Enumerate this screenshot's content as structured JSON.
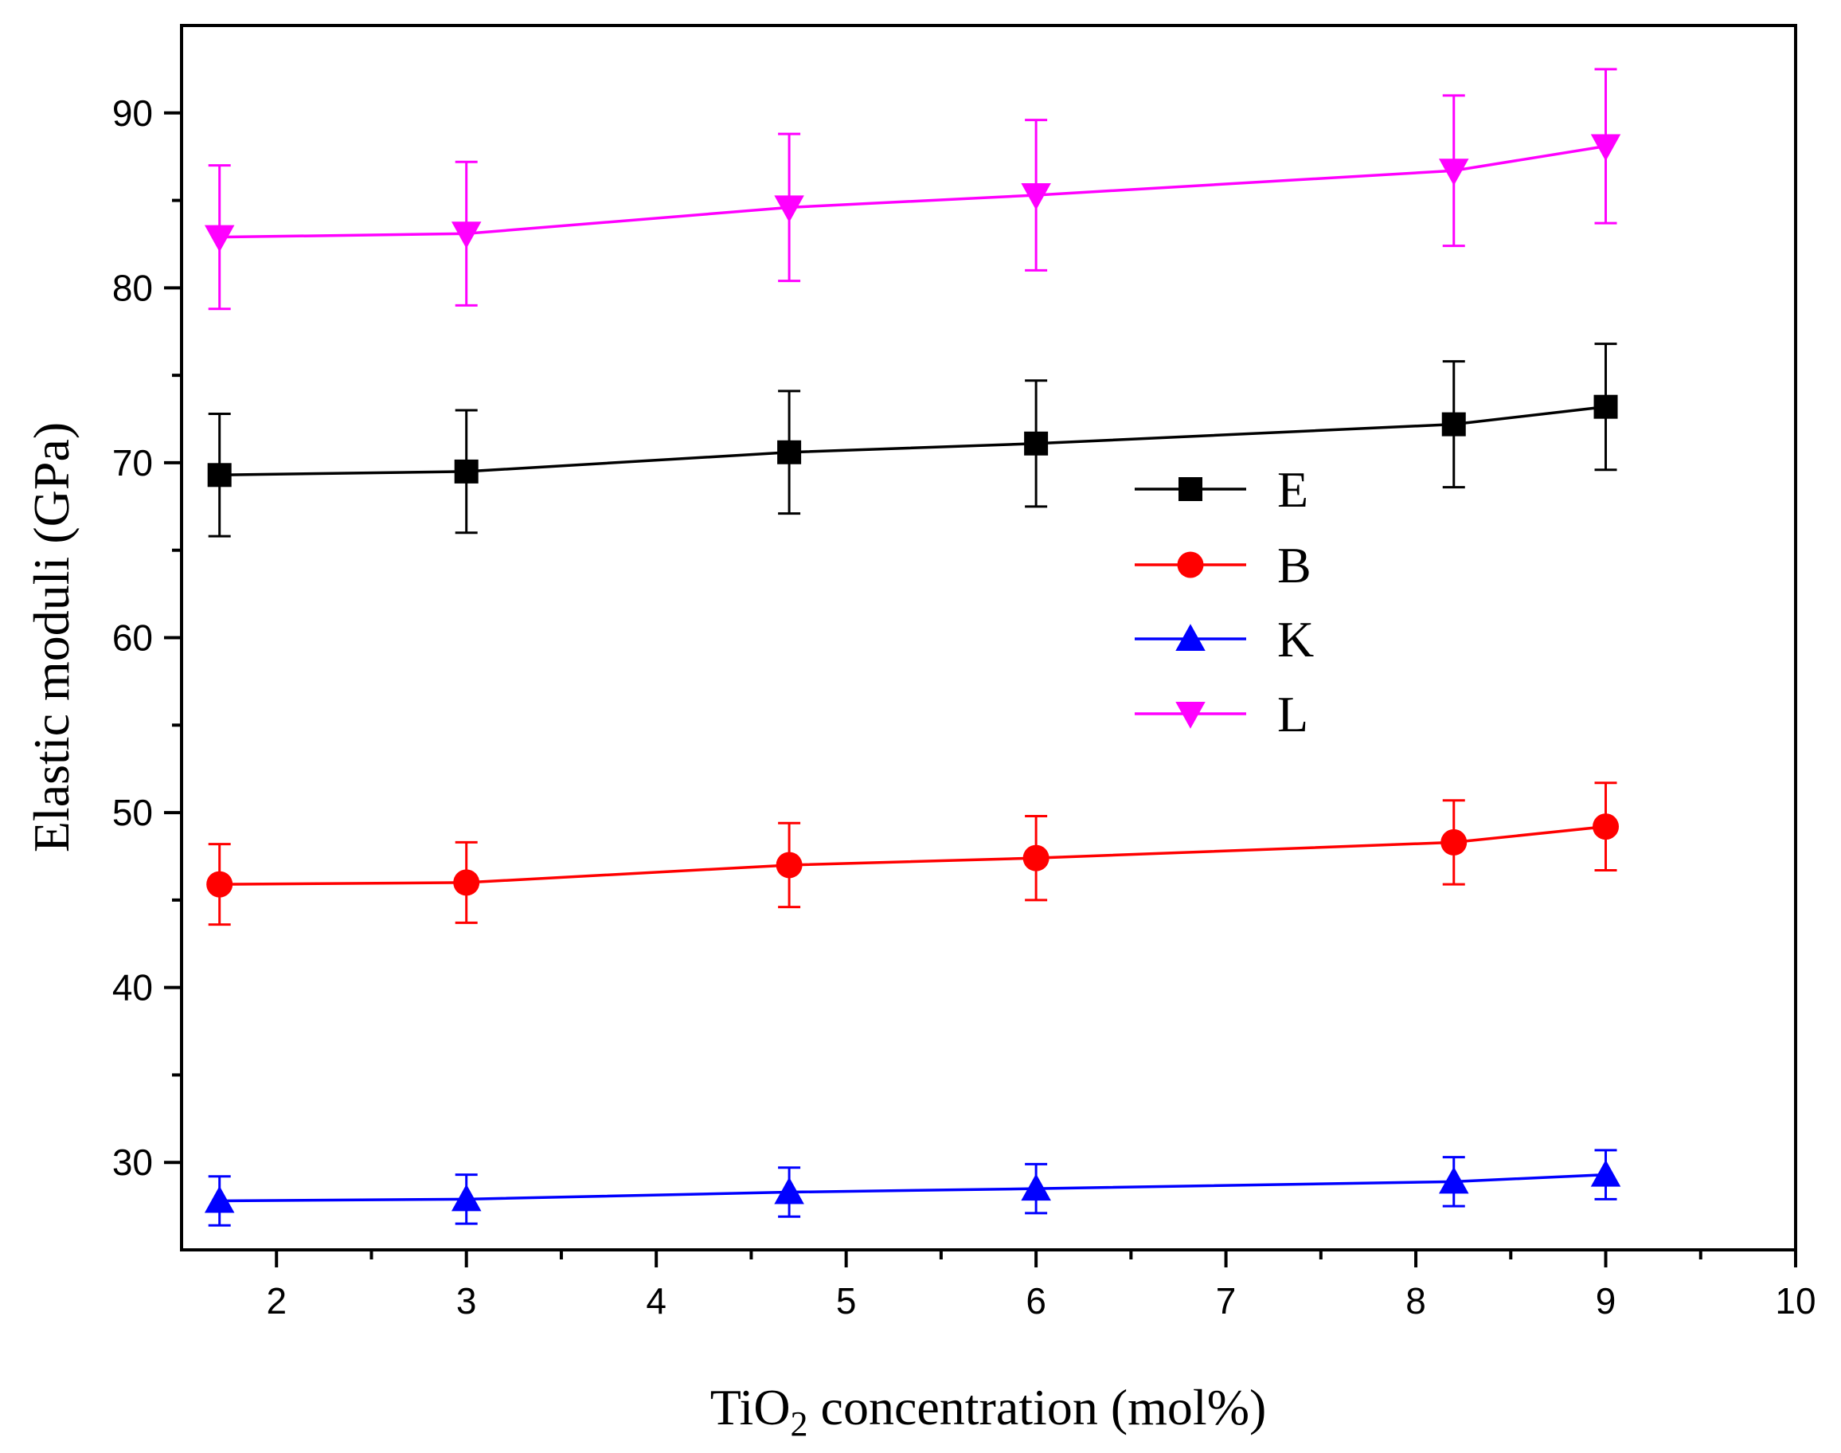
{
  "chart_data": {
    "type": "line",
    "title": "",
    "xlabel": {
      "prefix": "TiO",
      "subscript": "2",
      "suffix": " concentration (mol%)"
    },
    "ylabel": "Elastic moduli (GPa)",
    "xlim": [
      1.5,
      10
    ],
    "ylim": [
      25,
      95
    ],
    "x_ticks": [
      2,
      3,
      4,
      5,
      6,
      7,
      8,
      9,
      10
    ],
    "y_ticks": [
      30,
      40,
      50,
      60,
      70,
      80,
      90
    ],
    "x": [
      1.7,
      3,
      4.7,
      6,
      8.2,
      9
    ],
    "legend_position": "center-right",
    "series": [
      {
        "name": "E",
        "color": "#000000",
        "marker": "square",
        "values": [
          69.3,
          69.5,
          70.6,
          71.1,
          72.2,
          73.2
        ],
        "errors": [
          3.5,
          3.5,
          3.5,
          3.6,
          3.6,
          3.6
        ]
      },
      {
        "name": "B",
        "color": "#ff0000",
        "marker": "circle",
        "values": [
          45.9,
          46.0,
          47.0,
          47.4,
          48.3,
          49.2
        ],
        "errors": [
          2.3,
          2.3,
          2.4,
          2.4,
          2.4,
          2.5
        ]
      },
      {
        "name": "K",
        "color": "#0000ff",
        "marker": "triangle-up",
        "values": [
          27.8,
          27.9,
          28.3,
          28.5,
          28.9,
          29.3
        ],
        "errors": [
          1.4,
          1.4,
          1.4,
          1.4,
          1.4,
          1.4
        ]
      },
      {
        "name": "L",
        "color": "#ff00ff",
        "marker": "triangle-down",
        "values": [
          82.9,
          83.1,
          84.6,
          85.3,
          86.7,
          88.1
        ],
        "errors": [
          4.1,
          4.1,
          4.2,
          4.3,
          4.3,
          4.4
        ]
      }
    ]
  }
}
